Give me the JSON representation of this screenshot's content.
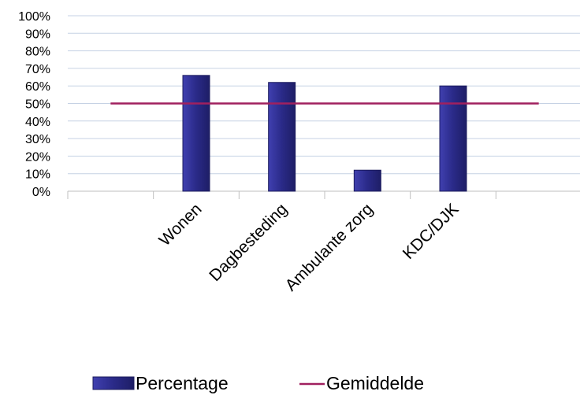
{
  "chart_data": {
    "type": "bar",
    "categories": [
      "",
      "Wonen",
      "Dagbesteding",
      "Ambulante zorg",
      "KDC/DJK",
      ""
    ],
    "series": [
      {
        "name": "Percentage",
        "values": [
          null,
          66,
          62,
          12,
          60,
          null
        ],
        "unit": "%"
      },
      {
        "name": "Gemiddelde",
        "type": "line",
        "values": [
          50,
          50,
          50,
          50,
          50,
          50
        ],
        "unit": "%"
      }
    ],
    "ylim": [
      0,
      100
    ],
    "yticks": [
      "0%",
      "10%",
      "20%",
      "30%",
      "40%",
      "50%",
      "60%",
      "70%",
      "80%",
      "90%",
      "100%"
    ],
    "grid": true,
    "legend": "bottom",
    "colors": {
      "bar": "#2e2e8c",
      "bar_edge": "#1c1c5e",
      "line": "#a0205f",
      "grid": "#c6d2e4"
    }
  }
}
